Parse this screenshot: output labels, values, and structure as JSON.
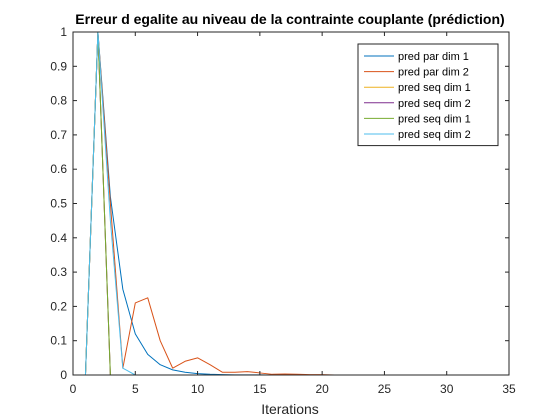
{
  "chart_data": {
    "type": "line",
    "title": "Erreur d egalite au niveau de la contrainte couplante (prédiction)",
    "xlabel": "Iterations",
    "ylabel": "",
    "xlim": [
      0,
      35
    ],
    "ylim": [
      0,
      1
    ],
    "xticks": [
      0,
      5,
      10,
      15,
      20,
      25,
      30,
      35
    ],
    "yticks": [
      0,
      0.1,
      0.2,
      0.3,
      0.4,
      0.5,
      0.6,
      0.7,
      0.8,
      0.9,
      1
    ],
    "ytick_labels": [
      "0",
      "0.1",
      "0.2",
      "0.3",
      "0.4",
      "0.5",
      "0.6",
      "0.7",
      "0.8",
      "0.9",
      "1"
    ],
    "grid": false,
    "legend_position": "top-right",
    "series": [
      {
        "name": "pred par dim 1",
        "color": "#0072BD",
        "x": [
          1,
          2,
          3,
          4,
          5,
          6,
          7,
          8,
          9,
          10,
          11,
          12,
          13,
          14,
          15,
          16,
          17,
          18,
          19,
          20,
          21,
          22,
          23,
          24,
          25,
          26,
          27,
          28,
          29,
          30,
          31,
          32,
          33
        ],
        "y": [
          0,
          1,
          0.52,
          0.25,
          0.12,
          0.06,
          0.03,
          0.015,
          0.008,
          0.004,
          0.002,
          0.001,
          0.0005,
          0.0003,
          0.0002,
          0.0001,
          0,
          0,
          0,
          0,
          0,
          0,
          0,
          0,
          0,
          0,
          0,
          0,
          0,
          0,
          0,
          0,
          0
        ]
      },
      {
        "name": "pred par dim 2",
        "color": "#D95319",
        "x": [
          1,
          2,
          3,
          4,
          5,
          6,
          7,
          8,
          9,
          10,
          11,
          12,
          13,
          14,
          15,
          16,
          17,
          18,
          19,
          20,
          21,
          22,
          23,
          24,
          25,
          26,
          27,
          28,
          29,
          30,
          31,
          32,
          33
        ],
        "y": [
          0,
          1,
          0.5,
          0.02,
          0.21,
          0.225,
          0.1,
          0.02,
          0.04,
          0.05,
          0.03,
          0.008,
          0.008,
          0.01,
          0.006,
          0.002,
          0.003,
          0.002,
          0.001,
          0.001,
          0,
          0,
          0,
          0,
          0,
          0,
          0,
          0,
          0,
          0,
          0,
          0,
          0
        ]
      },
      {
        "name": "pred seq dim 1",
        "color": "#EDB120",
        "x": [
          1,
          2,
          3
        ],
        "y": [
          0,
          1,
          0
        ]
      },
      {
        "name": "pred seq dim 2",
        "color": "#7E2F8E",
        "x": [
          1,
          2,
          3
        ],
        "y": [
          0,
          1,
          0
        ]
      },
      {
        "name": "pred seq dim 1",
        "color": "#77AC30",
        "x": [
          1,
          2,
          3
        ],
        "y": [
          0,
          1,
          0
        ]
      },
      {
        "name": "pred seq dim 2",
        "color": "#4DBEEE",
        "x": [
          1,
          2,
          3,
          4,
          5
        ],
        "y": [
          0,
          1,
          0.45,
          0.02,
          0
        ]
      }
    ]
  }
}
